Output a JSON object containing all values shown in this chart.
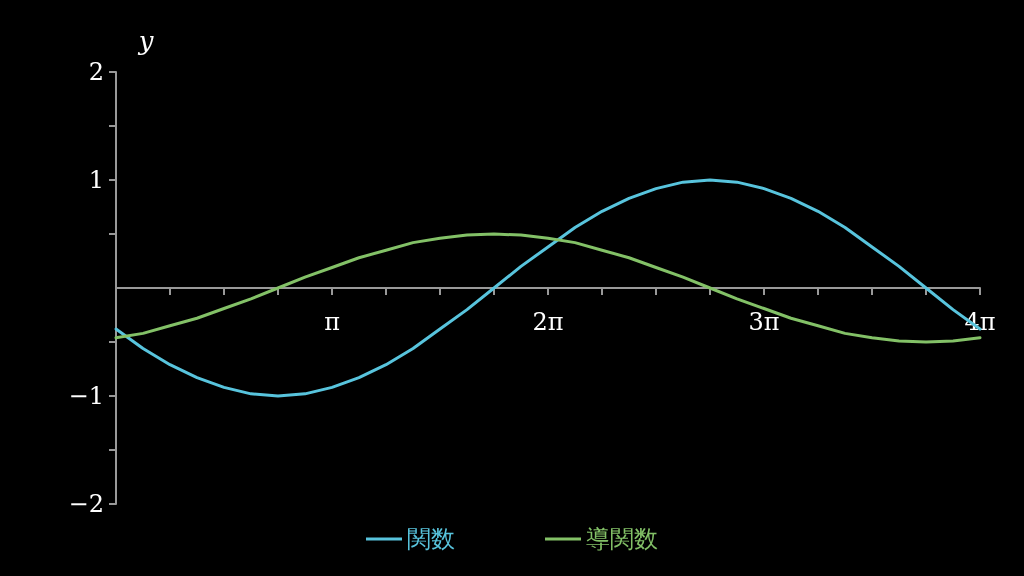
{
  "chart_data": {
    "type": "line",
    "ylabel": "y",
    "x": [
      0,
      0.393,
      0.785,
      1.178,
      1.571,
      1.963,
      2.356,
      2.749,
      3.142,
      3.534,
      3.927,
      4.32,
      4.712,
      5.105,
      5.498,
      5.89,
      6.283,
      6.676,
      7.069,
      7.461,
      7.854,
      8.247,
      8.639,
      9.032,
      9.425,
      9.817,
      10.21,
      10.603,
      10.996,
      11.388,
      11.781,
      12.174,
      12.566
    ],
    "series": [
      {
        "name": "関数",
        "color": "#58c4dd",
        "values": [
          -0.38,
          -0.56,
          -0.71,
          -0.83,
          -0.92,
          -0.98,
          -1,
          -0.98,
          -0.92,
          -0.83,
          -0.71,
          -0.56,
          -0.38,
          -0.2,
          0,
          0.2,
          0.38,
          0.56,
          0.71,
          0.83,
          0.92,
          0.98,
          1,
          0.98,
          0.92,
          0.83,
          0.71,
          0.56,
          0.38,
          0.2,
          0,
          -0.2,
          -0.38
        ]
      },
      {
        "name": "導関数",
        "color": "#83c167",
        "values": [
          -0.46,
          -0.42,
          -0.35,
          -0.28,
          -0.19,
          -0.1,
          0,
          0.1,
          0.19,
          0.28,
          0.35,
          0.42,
          0.46,
          0.49,
          0.5,
          0.49,
          0.46,
          0.42,
          0.35,
          0.28,
          0.19,
          0.1,
          0,
          -0.1,
          -0.19,
          -0.28,
          -0.35,
          -0.42,
          -0.46,
          -0.49,
          -0.5,
          -0.49,
          -0.46
        ]
      }
    ],
    "xlim": [
      0,
      12.566
    ],
    "xticks": [
      {
        "value": 0.785,
        "label": null
      },
      {
        "value": 1.571,
        "label": null
      },
      {
        "value": 2.356,
        "label": null
      },
      {
        "value": 3.142,
        "label": "π"
      },
      {
        "value": 3.927,
        "label": null
      },
      {
        "value": 4.712,
        "label": null
      },
      {
        "value": 5.498,
        "label": null
      },
      {
        "value": 6.283,
        "label": "2π"
      },
      {
        "value": 7.069,
        "label": null
      },
      {
        "value": 7.854,
        "label": null
      },
      {
        "value": 8.639,
        "label": null
      },
      {
        "value": 9.425,
        "label": "3π"
      },
      {
        "value": 10.21,
        "label": null
      },
      {
        "value": 10.996,
        "label": null
      },
      {
        "value": 11.781,
        "label": null
      },
      {
        "value": 12.566,
        "label": "4π"
      }
    ],
    "ylim": [
      -2,
      2
    ],
    "yticks": [
      {
        "value": -2,
        "label": "−2"
      },
      {
        "value": -1.5,
        "label": null
      },
      {
        "value": -1,
        "label": "−1"
      },
      {
        "value": -0.5,
        "label": null
      },
      {
        "value": 0.5,
        "label": null
      },
      1,
      {
        "value": 1.5,
        "label": null
      },
      2
    ],
    "grid": false,
    "legend": "bottom",
    "marker": "none",
    "line_style": "solid"
  }
}
